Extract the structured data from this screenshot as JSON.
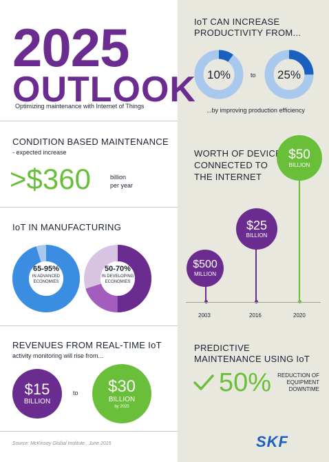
{
  "title": {
    "year": "2025",
    "headline": "OUTLOOK",
    "subtitle": "Optimizing maintenance with Internet of Things"
  },
  "cbm": {
    "heading": "CONDITION BASED MAINTENANCE",
    "sub": "- expected increase",
    "value": ">$360",
    "unit_line1": "billion",
    "unit_line2": "per year"
  },
  "iot_manufacturing": {
    "heading": "IoT IN MANUFACTURING",
    "advanced": {
      "range": "65-95%",
      "label_line1": "IN ADVANCED",
      "label_line2": "ECONOMIES",
      "share_low": 0.65,
      "share_high": 0.95
    },
    "developing": {
      "range": "50-70%",
      "label_line1": "IN DEVELOPING",
      "label_line2": "ECONOMIES",
      "share_low": 0.5,
      "share_high": 0.7
    }
  },
  "revenues": {
    "heading": "REVENUES FROM REAL-TIME IoT",
    "sub": "activity monitoring will rise from...",
    "from_value": "$15",
    "from_unit": "BILLION",
    "connector": "to",
    "to_value": "$30",
    "to_unit": "BILLION",
    "to_note": "by 2025"
  },
  "productivity": {
    "heading_line1": "IoT CAN INCREASE",
    "heading_line2": "PRODUCTIVITY FROM...",
    "from": "10%",
    "from_share": 0.1,
    "connector": "to",
    "to": "25%",
    "to_share": 0.25,
    "note": "...by improving production efficiency"
  },
  "devices": {
    "heading_line1": "WORTH OF DEVICES",
    "heading_line2": "CONNECTED TO",
    "heading_line3": "THE INTERNET",
    "points": [
      {
        "year": "2003",
        "value": "$500",
        "unit": "MILLION"
      },
      {
        "year": "2016",
        "value": "$25",
        "unit": "BILLION"
      },
      {
        "year": "2020",
        "value": "$50",
        "unit": "BILLION"
      }
    ]
  },
  "predictive": {
    "heading_line1": "PREDICTIVE",
    "heading_line2": "MAINTENANCE USING IoT",
    "value": "50%",
    "label_line1": "REDUCTION OF",
    "label_line2": "EQUIPMENT",
    "label_line3": "DOWNTIME"
  },
  "footer": {
    "source": "Source: McKinsey Global Institute , June 2015",
    "logo": "SKF"
  },
  "colors": {
    "purple": "#6b2c8f",
    "purple_light": "#b98fcc",
    "green": "#6abf3a",
    "blue": "#3a8de0",
    "blue_light": "#a9c8ee",
    "panel": "#e8e8df"
  }
}
